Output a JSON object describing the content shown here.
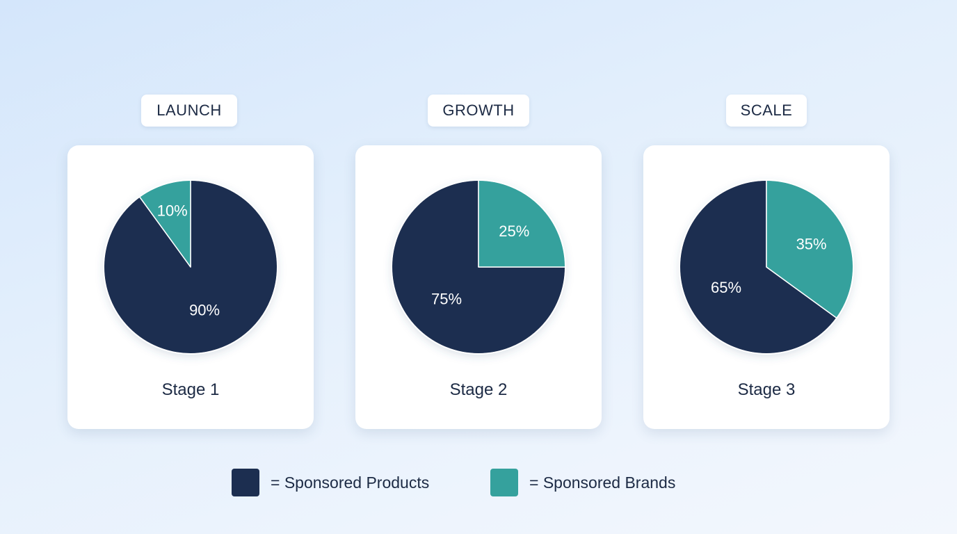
{
  "colors": {
    "sponsored_products": "#1c2e50",
    "sponsored_brands": "#35a19d"
  },
  "legend": {
    "products_label": "= Sponsored Products",
    "brands_label": "= Sponsored Brands"
  },
  "chart_data": [
    {
      "type": "pie",
      "title": "LAUNCH",
      "caption": "Stage 1",
      "categories": [
        "Sponsored Products",
        "Sponsored Brands"
      ],
      "values": [
        90,
        10
      ],
      "labels": [
        "90%",
        "10%"
      ]
    },
    {
      "type": "pie",
      "title": "GROWTH",
      "caption": "Stage 2",
      "categories": [
        "Sponsored Products",
        "Sponsored Brands"
      ],
      "values": [
        75,
        25
      ],
      "labels": [
        "75%",
        "25%"
      ]
    },
    {
      "type": "pie",
      "title": "SCALE",
      "caption": "Stage 3",
      "categories": [
        "Sponsored Products",
        "Sponsored Brands"
      ],
      "values": [
        65,
        35
      ],
      "labels": [
        "65%",
        "35%"
      ]
    }
  ]
}
